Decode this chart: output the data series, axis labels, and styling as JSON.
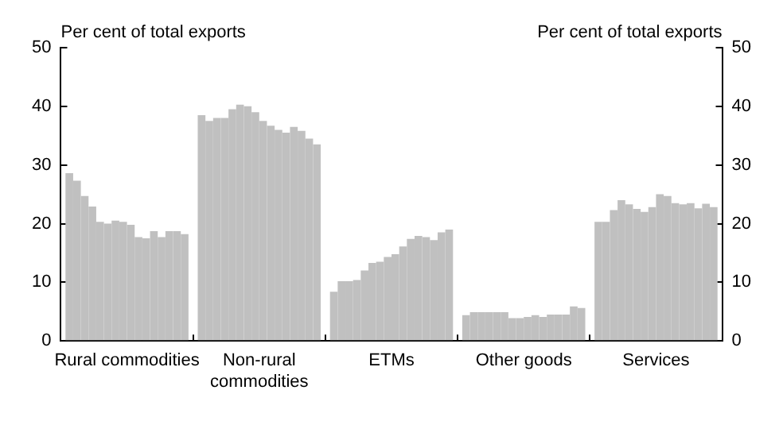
{
  "chart_data": {
    "type": "bar",
    "ylabel": "Per cent of total exports",
    "y2label": "Per cent of total exports",
    "categories": [
      "Rural commodities",
      "Non-rural commodities",
      "ETMs",
      "Other goods",
      "Services"
    ],
    "series": [
      {
        "color": "#c0c0c0",
        "values": [
          28.6,
          38.5,
          8.4,
          4.4,
          20.3
        ]
      },
      {
        "color": "#c0c0c0",
        "values": [
          27.3,
          37.5,
          10.2,
          4.9,
          20.3
        ]
      },
      {
        "color": "#c0c0c0",
        "values": [
          24.7,
          38.0,
          10.2,
          4.9,
          22.3
        ]
      },
      {
        "color": "#c0c0c0",
        "values": [
          22.9,
          38.0,
          10.4,
          4.9,
          24.0
        ]
      },
      {
        "color": "#c0c0c0",
        "values": [
          20.3,
          39.5,
          12.0,
          4.9,
          23.3
        ]
      },
      {
        "color": "#c0c0c0",
        "values": [
          20.0,
          40.3,
          13.3,
          4.9,
          22.5
        ]
      },
      {
        "color": "#c0c0c0",
        "values": [
          20.5,
          40.0,
          13.5,
          3.9,
          22.0
        ]
      },
      {
        "color": "#c0c0c0",
        "values": [
          20.3,
          39.0,
          14.3,
          3.9,
          22.8
        ]
      },
      {
        "color": "#c0c0c0",
        "values": [
          19.8,
          37.5,
          14.8,
          4.1,
          25.0
        ]
      },
      {
        "color": "#c0c0c0",
        "values": [
          17.7,
          36.7,
          16.1,
          4.4,
          24.7
        ]
      },
      {
        "color": "#c0c0c0",
        "values": [
          17.5,
          36.0,
          17.4,
          4.1,
          23.5
        ]
      },
      {
        "color": "#c0c0c0",
        "values": [
          18.7,
          35.5,
          17.9,
          4.5,
          23.3
        ]
      },
      {
        "color": "#c0c0c0",
        "values": [
          17.7,
          36.5,
          17.7,
          4.5,
          23.5
        ]
      },
      {
        "color": "#c0c0c0",
        "values": [
          18.7,
          35.8,
          17.2,
          4.5,
          22.6
        ]
      },
      {
        "color": "#c0c0c0",
        "values": [
          18.7,
          34.5,
          18.5,
          5.9,
          23.4
        ]
      },
      {
        "color": "#c0c0c0",
        "values": [
          18.2,
          33.5,
          19.0,
          5.6,
          22.8
        ]
      }
    ],
    "ylim": [
      0,
      50
    ],
    "yticks": [
      0,
      10,
      20,
      30,
      40,
      50
    ],
    "y2lim": [
      0,
      50
    ],
    "y2ticks": [
      0,
      10,
      20,
      30,
      40,
      50
    ],
    "grid": false,
    "legend": false
  }
}
